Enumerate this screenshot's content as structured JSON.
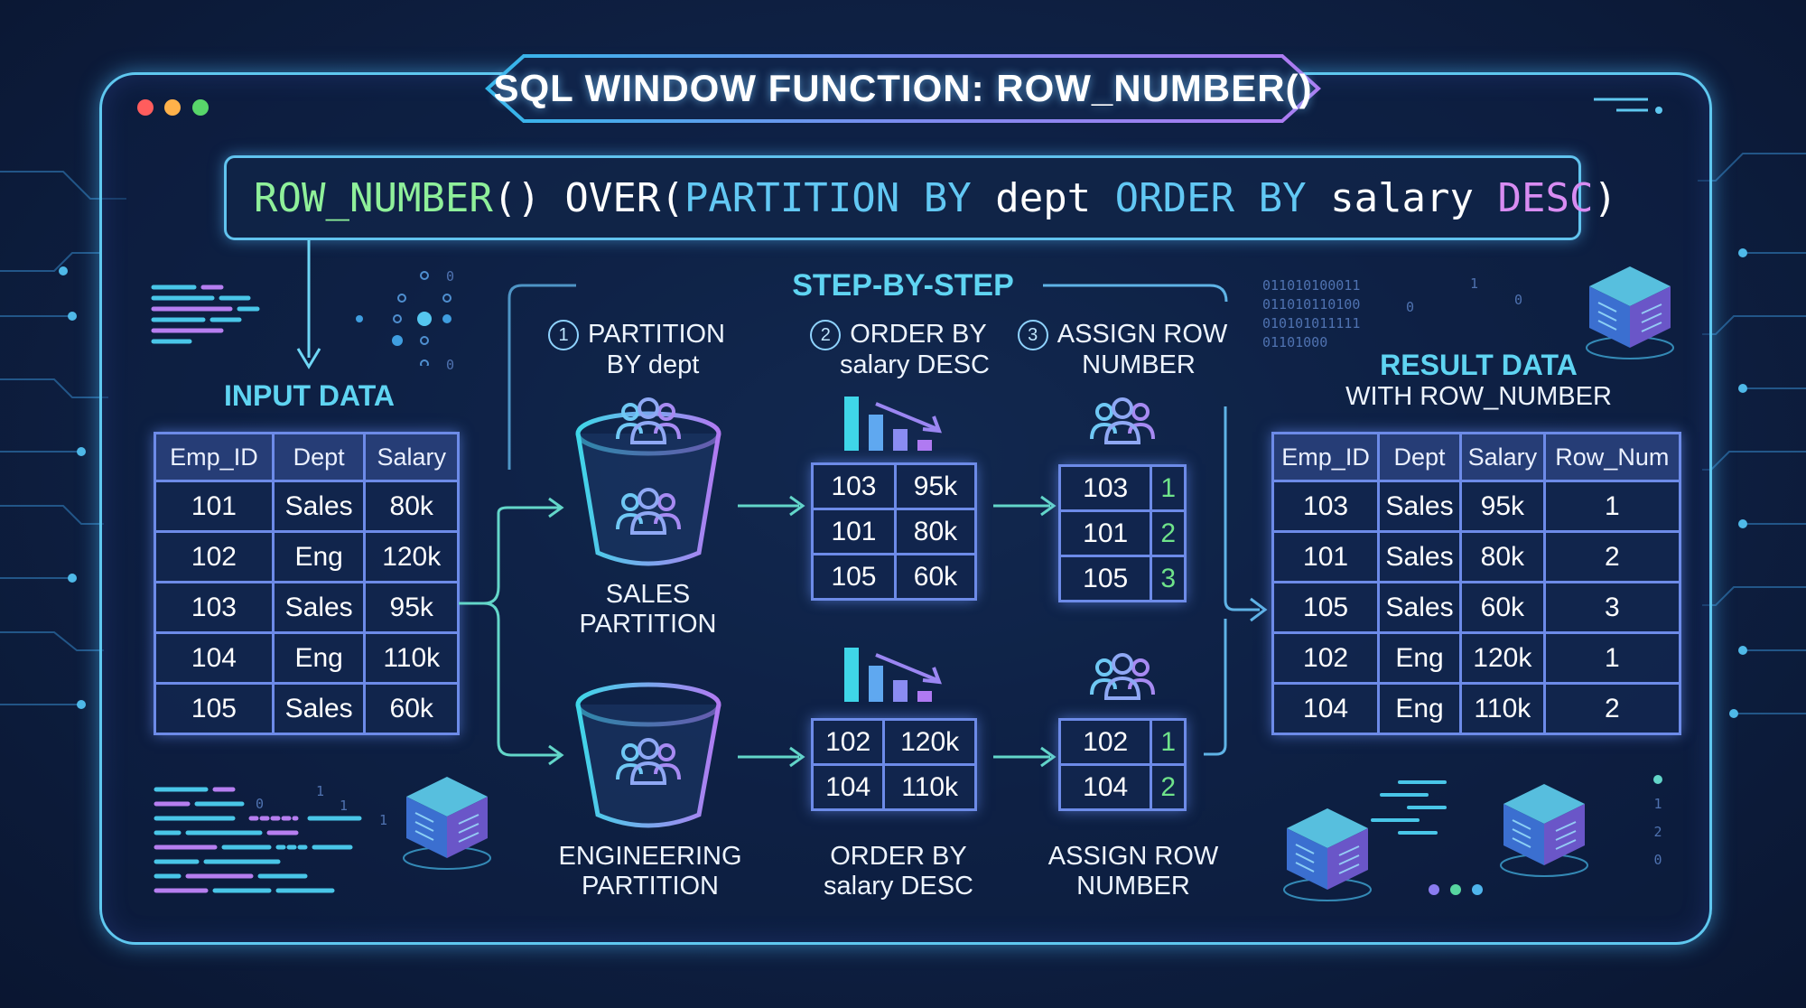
{
  "window": {
    "title": "SQL WINDOW FUNCTION: ROW_NUMBER()",
    "traffic_lights": [
      "#ff5d5d",
      "#ffb14a",
      "#58d66a"
    ]
  },
  "code": {
    "tokens": [
      {
        "text": "ROW_NUMBER",
        "color": "#8ff09a"
      },
      {
        "text": "() OVER(",
        "color": "#ffffff"
      },
      {
        "text": "PARTITION BY",
        "color": "#62c8f4"
      },
      {
        "text": " dept ",
        "color": "#ffffff"
      },
      {
        "text": "ORDER BY",
        "color": "#62c8f4"
      },
      {
        "text": " salary ",
        "color": "#ffffff"
      },
      {
        "text": "DESC",
        "color": "#d88cf2"
      },
      {
        "text": ")",
        "color": "#ffffff"
      }
    ]
  },
  "input": {
    "title": "INPUT DATA",
    "headers": [
      "Emp_ID",
      "Dept",
      "Salary"
    ],
    "rows": [
      [
        "101",
        "Sales",
        "80k"
      ],
      [
        "102",
        "Eng",
        "120k"
      ],
      [
        "103",
        "Sales",
        "95k"
      ],
      [
        "104",
        "Eng",
        "110k"
      ],
      [
        "105",
        "Sales",
        "60k"
      ]
    ]
  },
  "steps": {
    "heading": "STEP-BY-STEP",
    "step1": {
      "num": "1",
      "line1": "PARTITION",
      "line2": "BY dept"
    },
    "step2": {
      "num": "2",
      "line1": "ORDER BY",
      "line2": "salary DESC"
    },
    "step3": {
      "num": "3",
      "line1": "ASSIGN ROW",
      "line2": "NUMBER"
    }
  },
  "partitions": {
    "sales": {
      "line1": "SALES",
      "line2": "PARTITION"
    },
    "engineering": {
      "line1": "ENGINEERING",
      "line2": "PARTITION"
    }
  },
  "ordered": {
    "sales": [
      [
        "103",
        "95k"
      ],
      [
        "101",
        "80k"
      ],
      [
        "105",
        "60k"
      ]
    ],
    "engineering": [
      [
        "102",
        "120k"
      ],
      [
        "104",
        "110k"
      ]
    ],
    "caption_line1": "ORDER BY",
    "caption_line2": "salary DESC"
  },
  "numbered": {
    "sales": [
      [
        "103",
        "1"
      ],
      [
        "101",
        "2"
      ],
      [
        "105",
        "3"
      ]
    ],
    "engineering": [
      [
        "102",
        "1"
      ],
      [
        "104",
        "2"
      ]
    ],
    "caption_line1": "ASSIGN ROW",
    "caption_line2": "NUMBER"
  },
  "result": {
    "title_line1": "RESULT DATA",
    "title_line2": "WITH ROW_NUMBER",
    "headers": [
      "Emp_ID",
      "Dept",
      "Salary",
      "Row_Num"
    ],
    "rows": [
      [
        "103",
        "Sales",
        "95k",
        "1"
      ],
      [
        "101",
        "Sales",
        "80k",
        "2"
      ],
      [
        "105",
        "Sales",
        "60k",
        "3"
      ],
      [
        "102",
        "Eng",
        "120k",
        "1"
      ],
      [
        "104",
        "Eng",
        "110k",
        "2"
      ]
    ]
  },
  "decor": {
    "binary_top": "011010100011\n011010110100\n010101011111\n01101000",
    "binary_top_digits": [
      "0",
      "1",
      "0"
    ],
    "binary_bottom_digits": [
      "0",
      "1",
      "1",
      "1"
    ],
    "vertical_digits": [
      "1",
      "2",
      "0"
    ],
    "left_digits": [
      "0",
      "0",
      "0",
      "0"
    ]
  },
  "colors": {
    "frame": "#5fc8f0",
    "accent_cyan": "#5fd4f2",
    "table_border": "#6d8be8",
    "row_number_green": "#6fe38a"
  }
}
